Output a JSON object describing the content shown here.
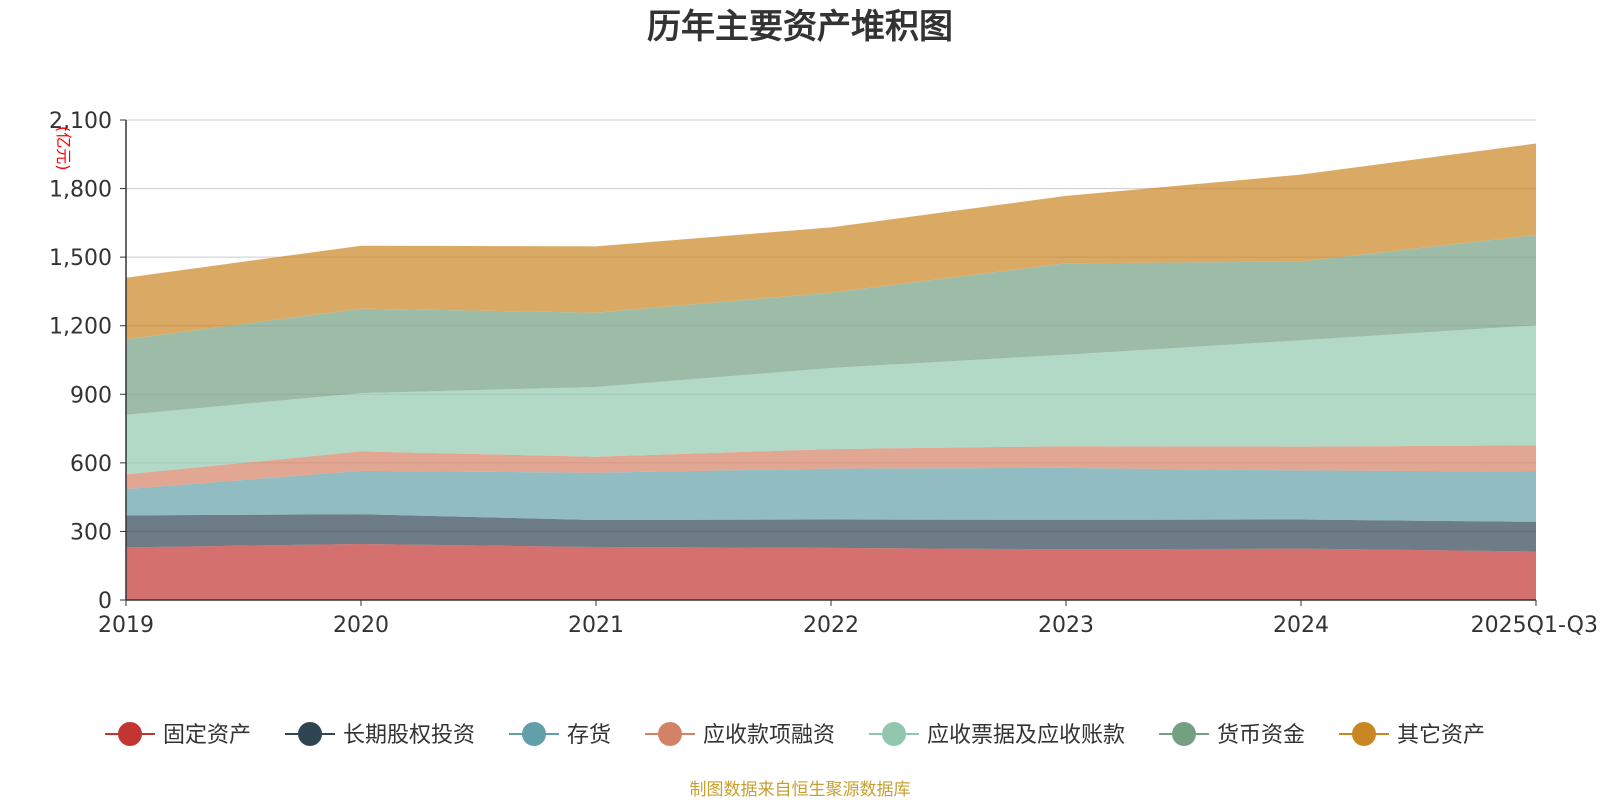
{
  "chart_data": {
    "type": "area",
    "stacked": true,
    "title": "历年主要资产堆积图",
    "ylabel": "(亿元)",
    "xlabel": "",
    "ylim": [
      0,
      2100
    ],
    "yticks": [
      0,
      300,
      600,
      900,
      1200,
      1500,
      1800,
      2100
    ],
    "ytick_labels": [
      "0",
      "300",
      "600",
      "900",
      "1,200",
      "1,500",
      "1,800",
      "2,100"
    ],
    "grid": true,
    "legend_position": "bottom",
    "categories": [
      "2019",
      "2020",
      "2021",
      "2022",
      "2023",
      "2024",
      "2025Q1-Q3"
    ],
    "series": [
      {
        "name": "固定资产",
        "color": "#c23531",
        "values": [
          230,
          245,
          232,
          228,
          222,
          225,
          212
        ]
      },
      {
        "name": "长期股权投资",
        "color": "#2f4554",
        "values": [
          140,
          130,
          118,
          124,
          129,
          127,
          130
        ]
      },
      {
        "name": "存货",
        "color": "#61a0a8",
        "values": [
          115,
          190,
          207,
          223,
          227,
          215,
          220
        ]
      },
      {
        "name": "应收款项融资",
        "color": "#d48265",
        "values": [
          65,
          85,
          70,
          85,
          95,
          104,
          115
        ]
      },
      {
        "name": "应收票据及应收账款",
        "color": "#91c7ae",
        "values": [
          260,
          255,
          305,
          355,
          400,
          465,
          525
        ]
      },
      {
        "name": "货币资金",
        "color": "#749f83",
        "values": [
          330,
          370,
          325,
          330,
          400,
          345,
          395
        ]
      },
      {
        "name": "其它资产",
        "color": "#ca8622",
        "values": [
          270,
          275,
          290,
          285,
          295,
          380,
          400
        ]
      }
    ],
    "source": "制图数据来自恒生聚源数据库"
  }
}
